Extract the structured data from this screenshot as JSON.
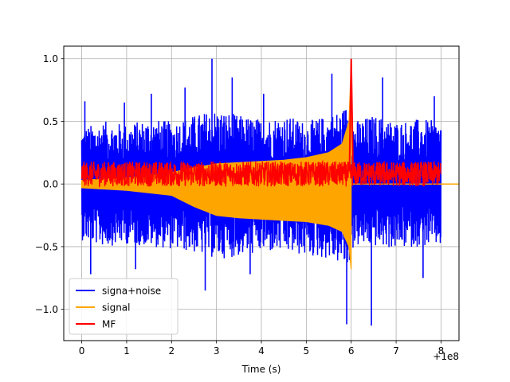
{
  "chart_data": {
    "type": "line",
    "title": "",
    "xlabel": "Time (s)",
    "ylabel": "",
    "x_offset_label": "+1e8",
    "xlim": [
      -0.4,
      8.4
    ],
    "ylim": [
      -1.25,
      1.1
    ],
    "xticks": [
      {
        "value": 0,
        "label": "0"
      },
      {
        "value": 1,
        "label": "1"
      },
      {
        "value": 2,
        "label": "2"
      },
      {
        "value": 3,
        "label": "3"
      },
      {
        "value": 4,
        "label": "4"
      },
      {
        "value": 5,
        "label": "5"
      },
      {
        "value": 6,
        "label": "6"
      },
      {
        "value": 7,
        "label": "7"
      },
      {
        "value": 8,
        "label": "8"
      }
    ],
    "yticks": [
      {
        "value": -1.0,
        "label": "−1.0"
      },
      {
        "value": -0.5,
        "label": "−0.5"
      },
      {
        "value": 0.0,
        "label": "0.0"
      },
      {
        "value": 0.5,
        "label": "0.5"
      },
      {
        "value": 1.0,
        "label": "1.0"
      }
    ],
    "grid": true,
    "legend_position": "lower-left",
    "series": [
      {
        "name": "signa+noise",
        "color": "#0000ff",
        "envelope": {
          "x": [
            0.0,
            0.5,
            1.0,
            1.5,
            2.0,
            2.5,
            3.0,
            3.5,
            4.0,
            4.5,
            5.0,
            5.5,
            5.8,
            5.95,
            6.05,
            6.5,
            7.0,
            7.5,
            8.0
          ],
          "upper": [
            0.45,
            0.5,
            0.48,
            0.52,
            0.5,
            0.55,
            0.6,
            0.55,
            0.52,
            0.55,
            0.5,
            0.55,
            0.6,
            0.65,
            0.5,
            0.55,
            0.5,
            0.52,
            0.5
          ],
          "lower": [
            -0.45,
            -0.5,
            -0.48,
            -0.5,
            -0.52,
            -0.55,
            -0.6,
            -0.58,
            -0.55,
            -0.55,
            -0.58,
            -0.6,
            -0.65,
            -0.7,
            -0.5,
            -0.5,
            -0.52,
            -0.5,
            -0.5
          ]
        },
        "peaks": [
          {
            "x": 0.07,
            "y": 0.66
          },
          {
            "x": 0.95,
            "y": 0.65
          },
          {
            "x": 1.55,
            "y": 0.72
          },
          {
            "x": 2.3,
            "y": 0.77
          },
          {
            "x": 2.9,
            "y": 1.0
          },
          {
            "x": 3.35,
            "y": 0.85
          },
          {
            "x": 4.05,
            "y": 0.72
          },
          {
            "x": 5.57,
            "y": 0.88
          },
          {
            "x": 6.7,
            "y": 0.85
          },
          {
            "x": 7.85,
            "y": 0.7
          },
          {
            "x": 0.2,
            "y": -0.72
          },
          {
            "x": 1.2,
            "y": -0.68
          },
          {
            "x": 2.75,
            "y": -0.85
          },
          {
            "x": 3.75,
            "y": -0.72
          },
          {
            "x": 5.9,
            "y": -1.12
          },
          {
            "x": 6.45,
            "y": -1.13
          },
          {
            "x": 7.6,
            "y": -0.75
          }
        ]
      },
      {
        "name": "signal",
        "color": "#ffa500",
        "envelope": {
          "x": [
            0.0,
            1.0,
            2.0,
            2.5,
            3.0,
            3.5,
            4.0,
            4.5,
            5.0,
            5.5,
            5.8,
            5.95,
            6.0
          ],
          "upper": [
            0.03,
            0.05,
            0.09,
            0.13,
            0.16,
            0.17,
            0.18,
            0.19,
            0.21,
            0.25,
            0.32,
            0.5,
            0.95
          ],
          "lower": [
            -0.03,
            -0.05,
            -0.09,
            -0.18,
            -0.25,
            -0.27,
            -0.28,
            -0.29,
            -0.3,
            -0.33,
            -0.38,
            -0.5,
            -0.68
          ]
        }
      },
      {
        "name": "MF",
        "color": "#ff0000",
        "band": [
          -0.02,
          0.18
        ],
        "peak": {
          "x": 6.0,
          "y": 1.0
        }
      }
    ]
  }
}
